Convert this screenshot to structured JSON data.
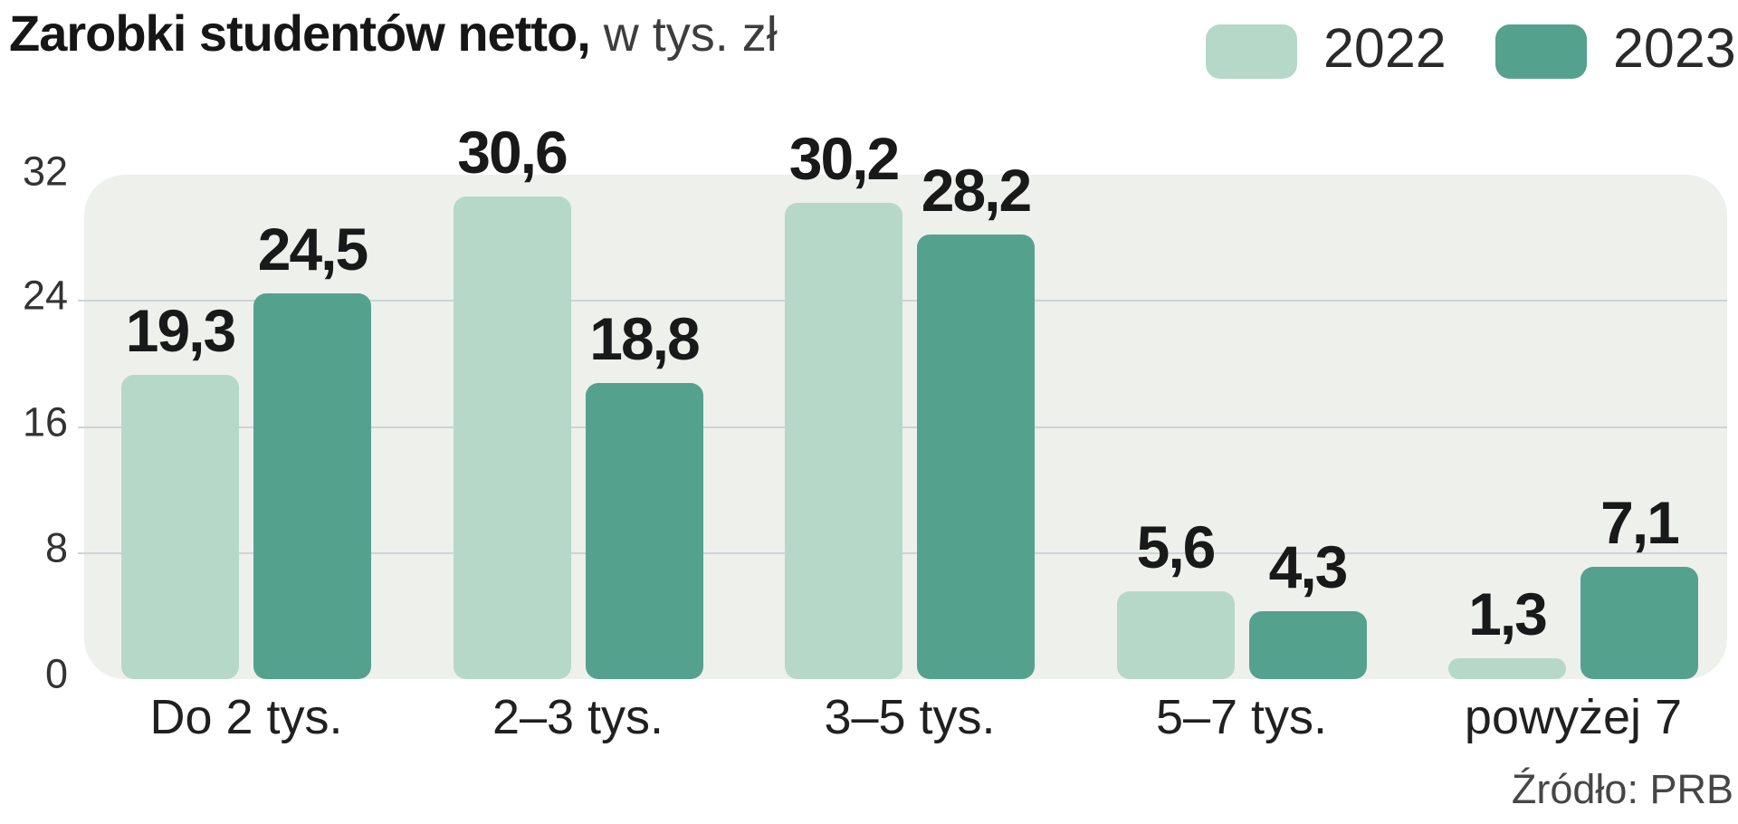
{
  "title": {
    "bold": "Zarobki studentów netto,",
    "regular": " w tys. zł"
  },
  "source": "Źródło: PRB",
  "chart_data": {
    "type": "bar",
    "title": "Zarobki studentów netto, w tys. zł",
    "categories": [
      "Do 2 tys.",
      "2–3 tys.",
      "3–5 tys.",
      "5–7 tys.",
      "powyżej 7"
    ],
    "series": [
      {
        "name": "2022",
        "color": "#b6d8c9",
        "values": [
          19.3,
          30.6,
          30.2,
          5.6,
          1.3
        ]
      },
      {
        "name": "2023",
        "color": "#54a28e",
        "values": [
          24.5,
          18.8,
          28.2,
          4.3,
          7.1
        ]
      }
    ],
    "value_labels": [
      "19,3",
      "30,6",
      "30,2",
      "5,6",
      "1,3",
      "24,5",
      "18,8",
      "28,2",
      "4,3",
      "7,1"
    ],
    "decimal_separator": ",",
    "xlabel": "",
    "ylabel": "",
    "y_ticks": [
      32,
      24,
      16,
      8,
      0
    ],
    "ylim": [
      0,
      32
    ],
    "grid": true,
    "gridline_color": "#ccd5d5",
    "plot_background": "#eef0ec",
    "legend_position": "top-right",
    "legend_labels": [
      "2022",
      "2023"
    ]
  }
}
